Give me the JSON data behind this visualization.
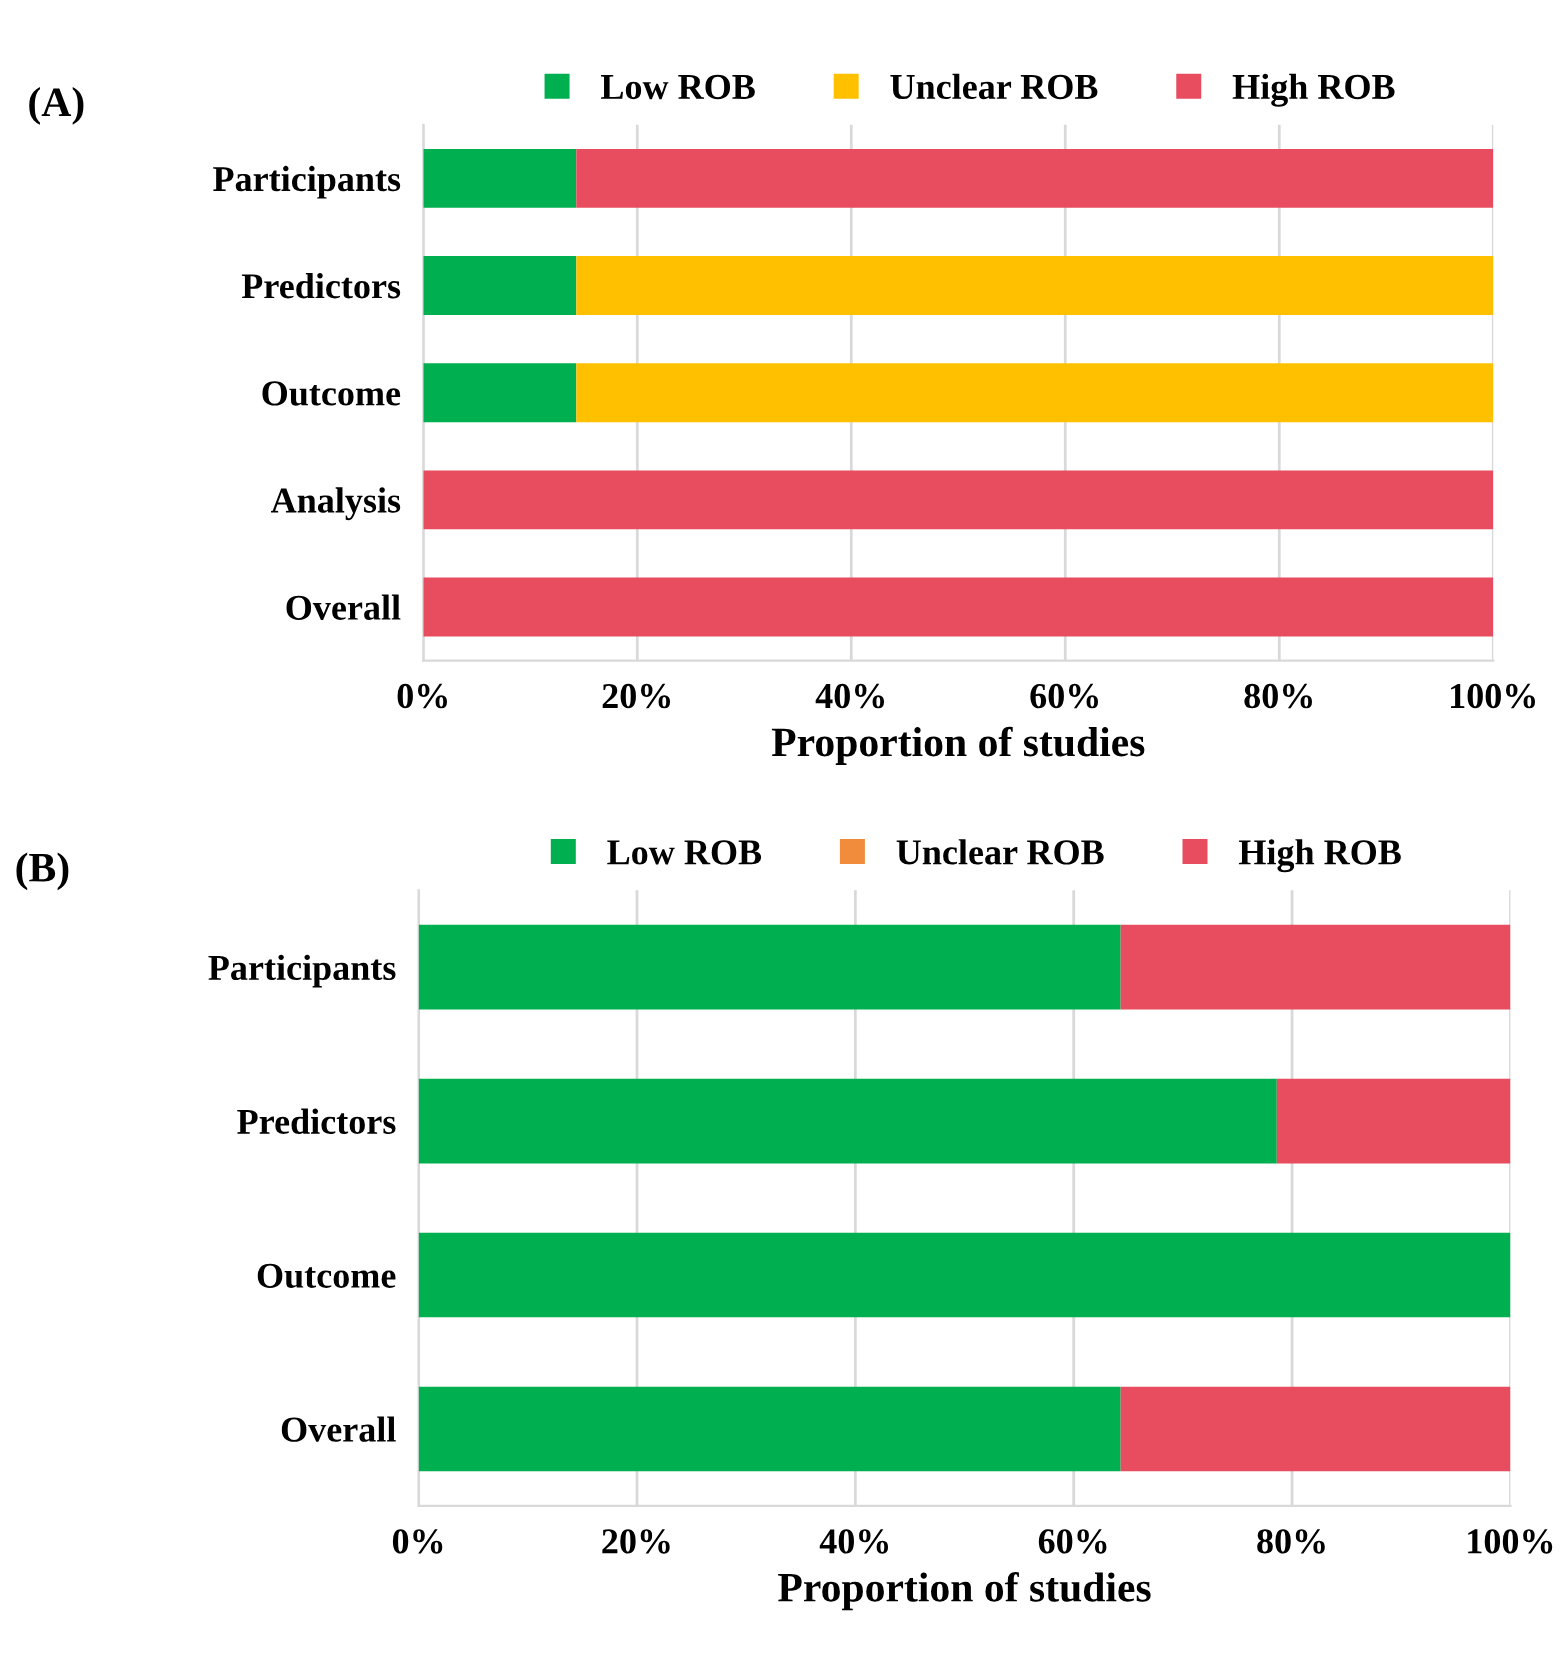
{
  "chart_data": [
    {
      "type": "bar",
      "orientation": "horizontal",
      "stacked": true,
      "title": "(A)",
      "xlabel": "Proportion of studies",
      "categories": [
        "Participants",
        "Predictors",
        "Outcome",
        "Analysis",
        "Overall"
      ],
      "series": [
        {
          "name": "Low ROB",
          "color": "#00b050",
          "values": [
            14.3,
            14.3,
            14.3,
            0,
            0
          ]
        },
        {
          "name": "Unclear ROB",
          "color": "#ffc000",
          "values": [
            0,
            85.7,
            85.7,
            0,
            0
          ]
        },
        {
          "name": "High ROB",
          "color": "#e84c5f",
          "values": [
            85.7,
            0,
            0,
            100,
            100
          ]
        }
      ],
      "xlim": [
        0,
        100
      ],
      "xticks": [
        {
          "value": 0,
          "label": "0%"
        },
        {
          "value": 20,
          "label": "20%"
        },
        {
          "value": 40,
          "label": "40%"
        },
        {
          "value": 60,
          "label": "60%"
        },
        {
          "value": 80,
          "label": "80%"
        },
        {
          "value": 100,
          "label": "100%"
        }
      ],
      "grid": "x",
      "legend": "top"
    },
    {
      "type": "bar",
      "orientation": "horizontal",
      "stacked": true,
      "title": "(B)",
      "xlabel": "Proportion of studies",
      "categories": [
        "Participants",
        "Predictors",
        "Outcome",
        "Overall"
      ],
      "series": [
        {
          "name": "Low ROB",
          "color": "#00b050",
          "values": [
            64.3,
            78.6,
            100,
            64.3
          ]
        },
        {
          "name": "Unclear ROB",
          "color": "#f08c3c",
          "values": [
            0,
            0,
            0,
            0
          ]
        },
        {
          "name": "High ROB",
          "color": "#e84c5f",
          "values": [
            35.7,
            21.4,
            0,
            35.7
          ]
        }
      ],
      "xlim": [
        0,
        100
      ],
      "xticks": [
        {
          "value": 0,
          "label": "0%"
        },
        {
          "value": 20,
          "label": "20%"
        },
        {
          "value": 40,
          "label": "40%"
        },
        {
          "value": 60,
          "label": "60%"
        },
        {
          "value": 80,
          "label": "80%"
        },
        {
          "value": 100,
          "label": "100%"
        }
      ],
      "grid": "x",
      "legend": "top"
    }
  ]
}
